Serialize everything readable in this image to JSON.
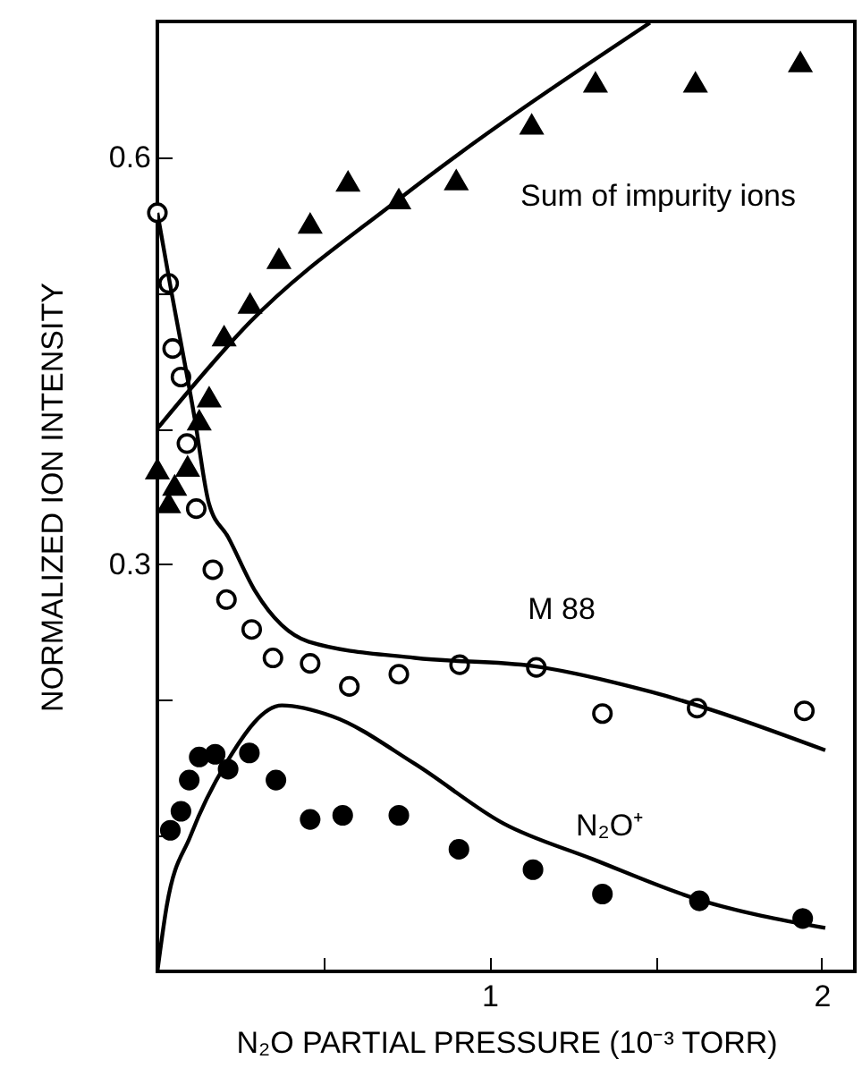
{
  "chart_data": {
    "type": "scatter",
    "xlabel": "N₂O PARTIAL PRESSURE (10⁻³ TORR)",
    "ylabel": "NORMALIZED ION INTENSITY",
    "xlim": [
      0,
      2.1
    ],
    "ylim": [
      0,
      0.7
    ],
    "xticks": [
      {
        "value": 0.5,
        "label": null
      },
      1,
      {
        "value": 1.5,
        "label": null
      },
      2
    ],
    "yticks": [
      {
        "value": 0.1,
        "label": null
      },
      {
        "value": 0.2,
        "label": null
      },
      0.3,
      {
        "value": 0.4,
        "label": null
      },
      {
        "value": 0.5,
        "label": null
      },
      0.6
    ],
    "grid": false,
    "series": [
      {
        "name": "Sum of impurity ions",
        "marker": "triangle",
        "color": "#000000",
        "x": [
          0,
          0.034,
          0.052,
          0.091,
          0.126,
          0.156,
          0.201,
          0.279,
          0.366,
          0.46,
          0.574,
          0.727,
          0.9,
          1.127,
          1.319,
          1.62,
          1.936
        ],
        "values": [
          0.37,
          0.345,
          0.358,
          0.372,
          0.406,
          0.423,
          0.468,
          0.492,
          0.525,
          0.551,
          0.582,
          0.569,
          0.583,
          0.624,
          0.655,
          0.655,
          0.67
        ]
      },
      {
        "type": "line",
        "color": "#000000",
        "x": [
          0,
          0.277,
          0.727,
          1.483
        ],
        "values": [
          0.4,
          0.478,
          0.569,
          0.699
        ]
      },
      {
        "name": "M 88",
        "marker": "circle",
        "color": "#ffffff",
        "x": [
          0,
          0.034,
          0.046,
          0.071,
          0.089,
          0.117,
          0.167,
          0.208,
          0.284,
          0.348,
          0.46,
          0.578,
          0.727,
          0.91,
          1.141,
          1.34,
          1.625,
          1.948
        ],
        "values": [
          0.559,
          0.507,
          0.459,
          0.438,
          0.389,
          0.341,
          0.296,
          0.274,
          0.252,
          0.231,
          0.227,
          0.21,
          0.219,
          0.226,
          0.224,
          0.19,
          0.194,
          0.192
        ]
      },
      {
        "type": "line",
        "color": "#000000",
        "x": [
          0,
          0.037,
          0.112,
          0.155,
          0.213,
          0.295,
          0.455,
          0.775,
          1.131,
          1.486,
          2.011
        ],
        "values": [
          0.559,
          0.508,
          0.408,
          0.345,
          0.32,
          0.28,
          0.243,
          0.231,
          0.225,
          0.206,
          0.163
        ]
      },
      {
        "name": "N₂O⁺",
        "marker": "circle",
        "color": "#000000",
        "x": [
          0.039,
          0.071,
          0.096,
          0.126,
          0.174,
          0.213,
          0.277,
          0.357,
          0.46,
          0.558,
          0.727,
          0.908,
          1.131,
          1.34,
          1.632,
          1.943
        ],
        "values": [
          0.104,
          0.118,
          0.141,
          0.158,
          0.16,
          0.149,
          0.161,
          0.141,
          0.112,
          0.115,
          0.115,
          0.09,
          0.075,
          0.057,
          0.052,
          0.039
        ]
      },
      {
        "type": "line",
        "color": "#000000",
        "x": [
          0,
          0.028,
          0.1,
          0.206,
          0.375,
          0.526,
          0.775,
          1.042,
          1.308,
          1.628,
          2.011
        ],
        "values": [
          0,
          0.048,
          0.1,
          0.153,
          0.196,
          0.188,
          0.153,
          0.109,
          0.083,
          0.053,
          0.032
        ]
      }
    ]
  }
}
